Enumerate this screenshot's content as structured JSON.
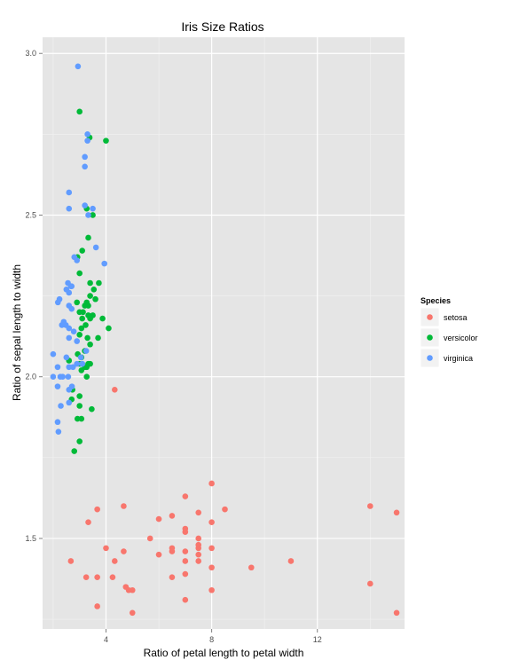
{
  "chart_data": {
    "type": "scatter",
    "title": "Iris Size Ratios",
    "xlabel": "Ratio of petal length to petal width",
    "ylabel": "Ratio of sepal length to width",
    "xlim": [
      1.6,
      15.3
    ],
    "ylim": [
      1.22,
      3.05
    ],
    "x_ticks": [
      4,
      8,
      12
    ],
    "y_ticks": [
      1.5,
      2.0,
      2.5,
      3.0
    ],
    "x_tick_labels": [
      "4",
      "8",
      "12"
    ],
    "y_tick_labels": [
      "1.5",
      "2.0",
      "2.5",
      "3.0"
    ],
    "grid": true,
    "legend": {
      "title": "Species",
      "position": "right"
    },
    "series": [
      {
        "name": "setosa",
        "color": "#F8766D",
        "points": [
          [
            4.33,
            1.96
          ],
          [
            8.0,
            1.67
          ],
          [
            7.0,
            1.63
          ],
          [
            14.0,
            1.6
          ],
          [
            15.0,
            1.58
          ],
          [
            4.67,
            1.6
          ],
          [
            3.67,
            1.59
          ],
          [
            8.5,
            1.59
          ],
          [
            7.5,
            1.58
          ],
          [
            6.0,
            1.56
          ],
          [
            6.5,
            1.57
          ],
          [
            3.33,
            1.55
          ],
          [
            8.0,
            1.55
          ],
          [
            7.0,
            1.53
          ],
          [
            7.0,
            1.52
          ],
          [
            7.5,
            1.5
          ],
          [
            5.67,
            1.5
          ],
          [
            7.5,
            1.48
          ],
          [
            7.5,
            1.47
          ],
          [
            8.0,
            1.47
          ],
          [
            4.0,
            1.47
          ],
          [
            6.5,
            1.47
          ],
          [
            7.5,
            1.45
          ],
          [
            7.0,
            1.46
          ],
          [
            4.67,
            1.46
          ],
          [
            6.0,
            1.45
          ],
          [
            6.5,
            1.46
          ],
          [
            7.0,
            1.43
          ],
          [
            4.33,
            1.43
          ],
          [
            7.5,
            1.43
          ],
          [
            11.0,
            1.43
          ],
          [
            2.67,
            1.43
          ],
          [
            9.5,
            1.41
          ],
          [
            8.0,
            1.41
          ],
          [
            7.0,
            1.39
          ],
          [
            3.25,
            1.38
          ],
          [
            4.25,
            1.38
          ],
          [
            3.67,
            1.38
          ],
          [
            6.5,
            1.38
          ],
          [
            14.0,
            1.36
          ],
          [
            4.75,
            1.35
          ],
          [
            5.0,
            1.34
          ],
          [
            4.86,
            1.34
          ],
          [
            8.0,
            1.34
          ],
          [
            7.0,
            1.31
          ],
          [
            3.67,
            1.29
          ],
          [
            5.0,
            1.27
          ],
          [
            15.0,
            1.27
          ]
        ]
      },
      {
        "name": "versicolor",
        "color": "#00BA38",
        "points": [
          [
            3.0,
            2.82
          ],
          [
            4.0,
            2.73
          ],
          [
            3.38,
            2.74
          ],
          [
            3.27,
            2.52
          ],
          [
            3.5,
            2.5
          ],
          [
            3.33,
            2.43
          ],
          [
            3.1,
            2.39
          ],
          [
            2.92,
            2.37
          ],
          [
            3.0,
            2.32
          ],
          [
            3.4,
            2.29
          ],
          [
            3.73,
            2.29
          ],
          [
            3.54,
            2.27
          ],
          [
            3.4,
            2.25
          ],
          [
            3.6,
            2.24
          ],
          [
            2.9,
            2.23
          ],
          [
            3.2,
            2.22
          ],
          [
            3.27,
            2.23
          ],
          [
            3.33,
            2.22
          ],
          [
            3.13,
            2.2
          ],
          [
            3.0,
            2.2
          ],
          [
            3.33,
            2.19
          ],
          [
            3.4,
            2.18
          ],
          [
            3.1,
            2.18
          ],
          [
            3.87,
            2.18
          ],
          [
            3.5,
            2.19
          ],
          [
            3.23,
            2.16
          ],
          [
            3.07,
            2.15
          ],
          [
            4.1,
            2.15
          ],
          [
            3.0,
            2.13
          ],
          [
            3.3,
            2.12
          ],
          [
            3.7,
            2.12
          ],
          [
            3.4,
            2.1
          ],
          [
            3.2,
            2.08
          ],
          [
            3.07,
            2.06
          ],
          [
            2.93,
            2.07
          ],
          [
            3.0,
            2.04
          ],
          [
            3.2,
            2.03
          ],
          [
            3.33,
            2.04
          ],
          [
            3.4,
            2.04
          ],
          [
            3.27,
            2.03
          ],
          [
            2.6,
            2.05
          ],
          [
            3.07,
            2.02
          ],
          [
            3.27,
            2.0
          ],
          [
            2.73,
            1.96
          ],
          [
            3.0,
            1.94
          ],
          [
            2.7,
            1.93
          ],
          [
            3.0,
            1.91
          ],
          [
            3.46,
            1.9
          ],
          [
            2.92,
            1.87
          ],
          [
            3.07,
            1.87
          ],
          [
            3.0,
            1.8
          ],
          [
            2.8,
            1.77
          ]
        ]
      },
      {
        "name": "virginica",
        "color": "#619CFF",
        "points": [
          [
            2.94,
            2.96
          ],
          [
            3.3,
            2.75
          ],
          [
            3.3,
            2.73
          ],
          [
            3.2,
            2.68
          ],
          [
            3.2,
            2.65
          ],
          [
            2.6,
            2.57
          ],
          [
            3.2,
            2.53
          ],
          [
            3.5,
            2.52
          ],
          [
            3.33,
            2.5
          ],
          [
            2.6,
            2.52
          ],
          [
            3.62,
            2.4
          ],
          [
            2.8,
            2.37
          ],
          [
            2.9,
            2.36
          ],
          [
            3.94,
            2.35
          ],
          [
            2.56,
            2.29
          ],
          [
            2.67,
            2.28
          ],
          [
            2.5,
            2.27
          ],
          [
            2.6,
            2.26
          ],
          [
            2.7,
            2.28
          ],
          [
            2.24,
            2.24
          ],
          [
            2.18,
            2.23
          ],
          [
            2.6,
            2.22
          ],
          [
            2.7,
            2.21
          ],
          [
            2.33,
            2.16
          ],
          [
            2.4,
            2.17
          ],
          [
            2.48,
            2.16
          ],
          [
            2.6,
            2.15
          ],
          [
            2.78,
            2.14
          ],
          [
            2.6,
            2.12
          ],
          [
            2.9,
            2.11
          ],
          [
            2.0,
            2.07
          ],
          [
            3.05,
            2.06
          ],
          [
            3.25,
            2.08
          ],
          [
            2.5,
            2.06
          ],
          [
            3.1,
            2.04
          ],
          [
            2.17,
            2.03
          ],
          [
            2.6,
            2.03
          ],
          [
            2.75,
            2.03
          ],
          [
            2.9,
            2.04
          ],
          [
            3.1,
            2.04
          ],
          [
            2.27,
            2.0
          ],
          [
            2.36,
            2.0
          ],
          [
            2.57,
            2.0
          ],
          [
            2.0,
            2.0
          ],
          [
            2.17,
            1.97
          ],
          [
            2.6,
            1.96
          ],
          [
            2.71,
            1.97
          ],
          [
            2.6,
            1.92
          ],
          [
            2.29,
            1.91
          ],
          [
            2.17,
            1.86
          ],
          [
            2.2,
            1.83
          ]
        ]
      }
    ]
  }
}
